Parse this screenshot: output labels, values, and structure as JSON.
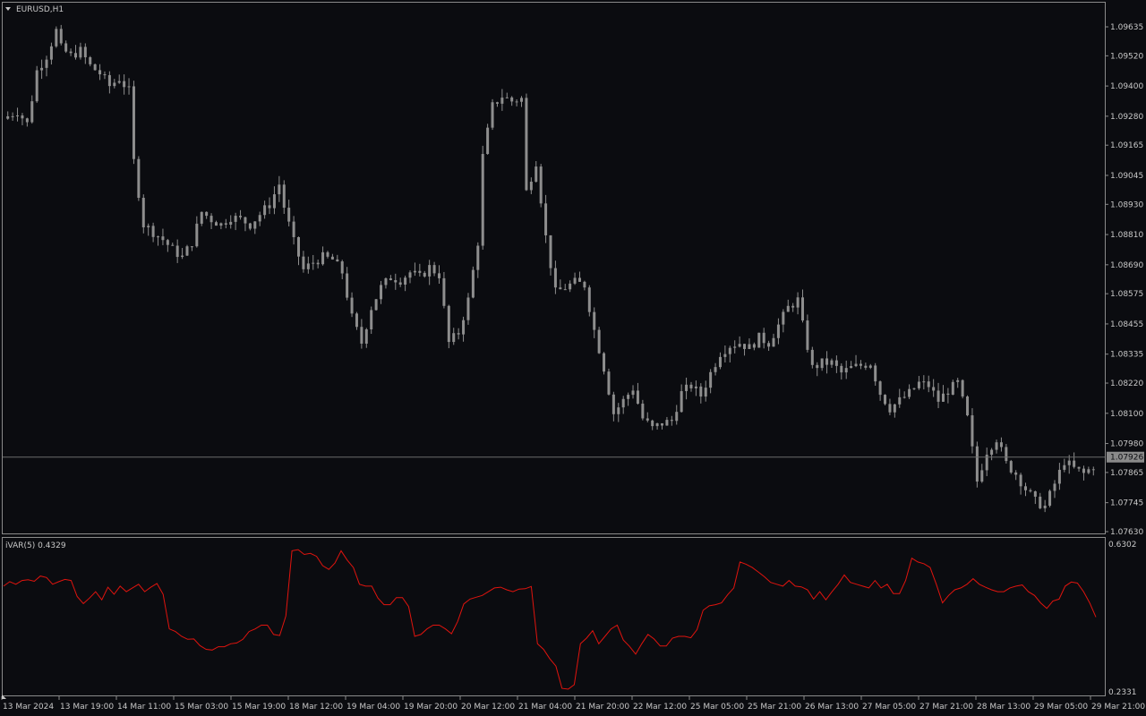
{
  "header": {
    "symbol_label": "EURUSD,H1",
    "dropdown_icon": "triangle-down-icon"
  },
  "colors": {
    "background": "#0b0c10",
    "frame": "#8a8a8a",
    "candle": "#8e8e8e",
    "indicator_line": "#e0140e",
    "price_line": "#6b6b6b",
    "price_badge": "#8a8a8a"
  },
  "chart_data": [
    {
      "type": "candlestick",
      "title": "EURUSD,H1",
      "ylim": [
        1.0763,
        1.097
      ],
      "y_ticks": [
        "1.09635",
        "1.09520",
        "1.09400",
        "1.09280",
        "1.09165",
        "1.09045",
        "1.08930",
        "1.08810",
        "1.08690",
        "1.08575",
        "1.08455",
        "1.08335",
        "1.08220",
        "1.08100",
        "1.07980",
        "1.07865",
        "1.07745",
        "1.07630"
      ],
      "current_price": "1.07926",
      "close_path": [
        [
          0,
          1.0927
        ],
        [
          3,
          1.093
        ],
        [
          5,
          1.0925
        ],
        [
          6,
          1.0935
        ],
        [
          7,
          1.0946
        ],
        [
          9,
          1.0952
        ],
        [
          11,
          1.0962
        ],
        [
          12,
          1.0955
        ],
        [
          14,
          1.0952
        ],
        [
          16,
          1.0954
        ],
        [
          18,
          1.0948
        ],
        [
          20,
          1.0945
        ],
        [
          22,
          1.094
        ],
        [
          24,
          1.0943
        ],
        [
          26,
          1.0938
        ],
        [
          27,
          1.091
        ],
        [
          29,
          1.0885
        ],
        [
          31,
          1.0882
        ],
        [
          33,
          1.0879
        ],
        [
          35,
          1.0875
        ],
        [
          37,
          1.0872
        ],
        [
          39,
          1.0878
        ],
        [
          41,
          1.089
        ],
        [
          43,
          1.0887
        ],
        [
          45,
          1.0885
        ],
        [
          47,
          1.0888
        ],
        [
          49,
          1.0887
        ],
        [
          51,
          1.0885
        ],
        [
          53,
          1.0889
        ],
        [
          55,
          1.0893
        ],
        [
          57,
          1.0901
        ],
        [
          58,
          1.0892
        ],
        [
          60,
          1.0878
        ],
        [
          62,
          1.0867
        ],
        [
          64,
          1.087
        ],
        [
          66,
          1.0872
        ],
        [
          68,
          1.0871
        ],
        [
          70,
          1.0866
        ],
        [
          72,
          1.0848
        ],
        [
          74,
          1.0838
        ],
        [
          76,
          1.0852
        ],
        [
          78,
          1.086
        ],
        [
          80,
          1.0864
        ],
        [
          82,
          1.0863
        ],
        [
          84,
          1.0866
        ],
        [
          86,
          1.0864
        ],
        [
          88,
          1.0868
        ],
        [
          90,
          1.0865
        ],
        [
          92,
          1.0838
        ],
        [
          94,
          1.0842
        ],
        [
          96,
          1.0855
        ],
        [
          98,
          1.0878
        ],
        [
          99,
          1.0912
        ],
        [
          101,
          1.0932
        ],
        [
          103,
          1.0936
        ],
        [
          105,
          1.0934
        ],
        [
          107,
          1.0935
        ],
        [
          108,
          1.0898
        ],
        [
          110,
          1.091
        ],
        [
          112,
          1.088
        ],
        [
          114,
          1.0858
        ],
        [
          116,
          1.086
        ],
        [
          118,
          1.0862
        ],
        [
          120,
          1.0861
        ],
        [
          122,
          1.0843
        ],
        [
          124,
          1.0828
        ],
        [
          126,
          1.081
        ],
        [
          128,
          1.0815
        ],
        [
          130,
          1.082
        ],
        [
          132,
          1.0808
        ],
        [
          134,
          1.0804
        ],
        [
          136,
          1.0806
        ],
        [
          138,
          1.0807
        ],
        [
          140,
          1.0818
        ],
        [
          142,
          1.0821
        ],
        [
          144,
          1.0817
        ],
        [
          146,
          1.0826
        ],
        [
          148,
          1.0834
        ],
        [
          150,
          1.0837
        ],
        [
          152,
          1.0838
        ],
        [
          154,
          1.0836
        ],
        [
          156,
          1.084
        ],
        [
          158,
          1.0838
        ],
        [
          160,
          1.0845
        ],
        [
          162,
          1.0852
        ],
        [
          164,
          1.0855
        ],
        [
          165,
          1.0845
        ],
        [
          167,
          1.0828
        ],
        [
          169,
          1.083
        ],
        [
          171,
          1.083
        ],
        [
          173,
          1.0826
        ],
        [
          175,
          1.0828
        ],
        [
          177,
          1.0829
        ],
        [
          179,
          1.083
        ],
        [
          181,
          1.0818
        ],
        [
          183,
          1.0812
        ],
        [
          185,
          1.0815
        ],
        [
          187,
          1.0818
        ],
        [
          189,
          1.0822
        ],
        [
          191,
          1.0821
        ],
        [
          193,
          1.0815
        ],
        [
          195,
          1.0819
        ],
        [
          197,
          1.0822
        ],
        [
          199,
          1.0808
        ],
        [
          201,
          1.0783
        ],
        [
          203,
          1.0795
        ],
        [
          205,
          1.08
        ],
        [
          207,
          1.079
        ],
        [
          209,
          1.0786
        ],
        [
          211,
          1.078
        ],
        [
          213,
          1.0775
        ],
        [
          215,
          1.0773
        ],
        [
          217,
          1.0782
        ],
        [
          219,
          1.0791
        ],
        [
          221,
          1.0788
        ],
        [
          223,
          1.0786
        ],
        [
          225,
          1.0789
        ]
      ],
      "y_axis_position": "right"
    },
    {
      "type": "line",
      "title": "iVAR(5) 0.4329",
      "series": [
        {
          "values": [
            0.515,
            0.527,
            0.52,
            0.53,
            0.532,
            0.528,
            0.542,
            0.538,
            0.52,
            0.527,
            0.533,
            0.53,
            0.487,
            0.468,
            0.483,
            0.5,
            0.478,
            0.512,
            0.493,
            0.515,
            0.5,
            0.51,
            0.52,
            0.5,
            0.512,
            0.522,
            0.493,
            0.4,
            0.393,
            0.38,
            0.372,
            0.373,
            0.355,
            0.345,
            0.343,
            0.352,
            0.352,
            0.36,
            0.362,
            0.372,
            0.393,
            0.4,
            0.41,
            0.41,
            0.385,
            0.382,
            0.435,
            0.61,
            0.613,
            0.6,
            0.603,
            0.595,
            0.57,
            0.56,
            0.577,
            0.61,
            0.585,
            0.565,
            0.52,
            0.515,
            0.515,
            0.483,
            0.465,
            0.465,
            0.484,
            0.484,
            0.46,
            0.38,
            0.385,
            0.4,
            0.41,
            0.41,
            0.4,
            0.387,
            0.42,
            0.467,
            0.48,
            0.485,
            0.49,
            0.5,
            0.51,
            0.512,
            0.505,
            0.5,
            0.507,
            0.508,
            0.514,
            0.36,
            0.345,
            0.32,
            0.3,
            0.24,
            0.238,
            0.25,
            0.36,
            0.375,
            0.395,
            0.36,
            0.38,
            0.4,
            0.41,
            0.37,
            0.353,
            0.332,
            0.36,
            0.385,
            0.373,
            0.354,
            0.354,
            0.375,
            0.38,
            0.38,
            0.376,
            0.398,
            0.45,
            0.462,
            0.465,
            0.47,
            0.492,
            0.51,
            0.58,
            0.574,
            0.565,
            0.553,
            0.54,
            0.525,
            0.52,
            0.515,
            0.53,
            0.515,
            0.513,
            0.505,
            0.48,
            0.5,
            0.478,
            0.5,
            0.52,
            0.545,
            0.525,
            0.52,
            0.515,
            0.51,
            0.53,
            0.51,
            0.52,
            0.495,
            0.495,
            0.53,
            0.59,
            0.58,
            0.575,
            0.565,
            0.52,
            0.47,
            0.49,
            0.505,
            0.51,
            0.52,
            0.535,
            0.52,
            0.512,
            0.505,
            0.5,
            0.5,
            0.51,
            0.515,
            0.518,
            0.5,
            0.49,
            0.47,
            0.455,
            0.475,
            0.48,
            0.515,
            0.526,
            0.523,
            0.5,
            0.47,
            0.432
          ]
        }
      ],
      "y_ticks": [
        "0.6302",
        "0.2331"
      ],
      "ylim": [
        0.2331,
        0.6302
      ]
    }
  ],
  "x_axis": {
    "labels": [
      "13 Mar 2024",
      "13 Mar 19:00",
      "14 Mar 11:00",
      "15 Mar 03:00",
      "15 Mar 19:00",
      "18 Mar 12:00",
      "19 Mar 04:00",
      "19 Mar 20:00",
      "20 Mar 12:00",
      "21 Mar 04:00",
      "21 Mar 20:00",
      "22 Mar 12:00",
      "25 Mar 05:00",
      "25 Mar 21:00",
      "26 Mar 13:00",
      "27 Mar 05:00",
      "27 Mar 21:00",
      "28 Mar 13:00",
      "29 Mar 05:00",
      "29 Mar 21:00"
    ]
  }
}
